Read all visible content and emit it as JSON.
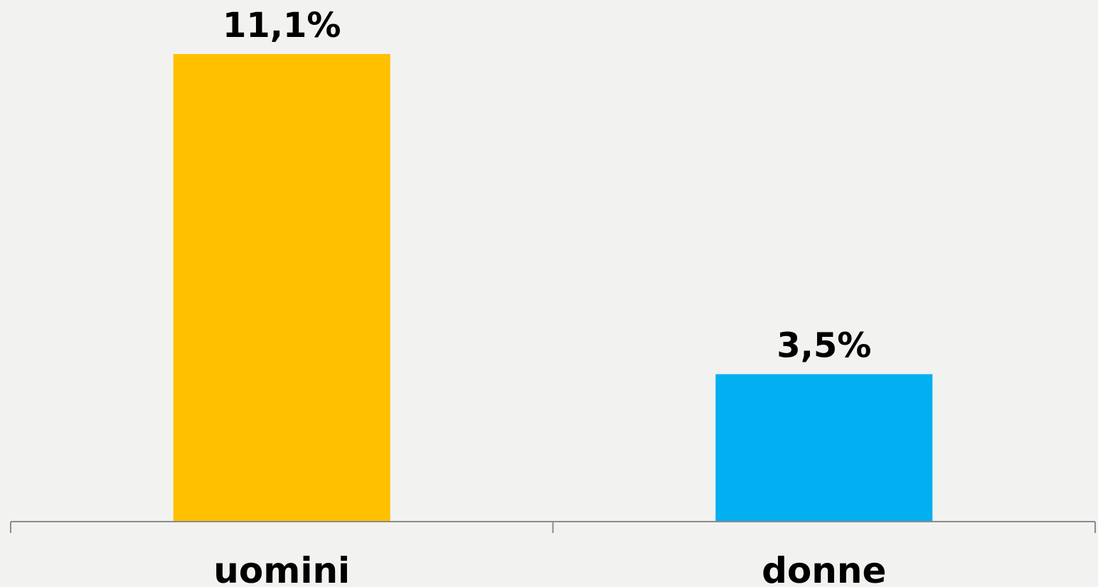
{
  "chart_data": {
    "type": "bar",
    "categories": [
      "uomini",
      "donne"
    ],
    "values": [
      11.1,
      3.5
    ],
    "value_labels": [
      "11,1%",
      "3,5%"
    ],
    "colors": [
      "#ffc000",
      "#00b0f0"
    ]
  }
}
